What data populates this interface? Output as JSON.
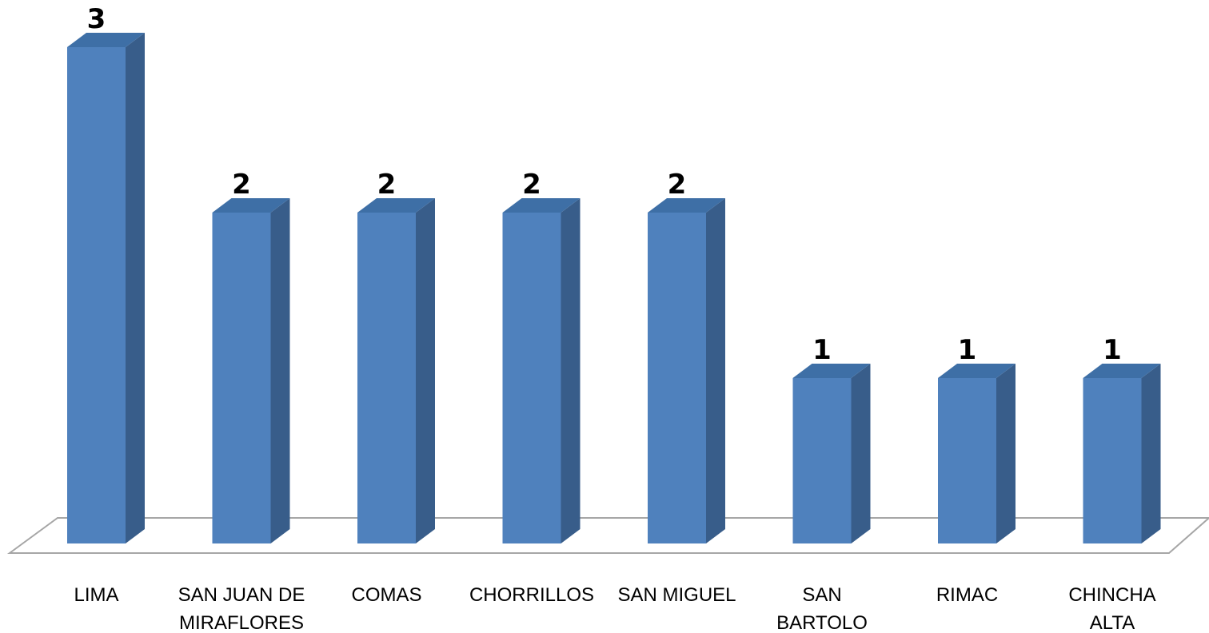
{
  "chart_data": {
    "type": "bar",
    "title": "",
    "xlabel": "",
    "ylabel": "",
    "categories": [
      [
        "LIMA"
      ],
      [
        "SAN JUAN DE",
        "MIRAFLORES"
      ],
      [
        "COMAS"
      ],
      [
        "CHORRILLOS"
      ],
      [
        "SAN MIGUEL"
      ],
      [
        "SAN",
        "BARTOLO"
      ],
      [
        "RIMAC"
      ],
      [
        "CHINCHA",
        "ALTA"
      ]
    ],
    "values": [
      3,
      2,
      2,
      2,
      2,
      1,
      1,
      1
    ],
    "data_labels": [
      "3",
      "2",
      "2",
      "2",
      "2",
      "1",
      "1",
      "1"
    ],
    "ylim": [
      0,
      3
    ],
    "grid": false,
    "legend": "none",
    "style": "3d-column",
    "colors": {
      "bar_front": "#4F81BD",
      "bar_side": "#385D8A",
      "bar_top": "#3E6FA6",
      "floor_line": "#A6A6A6",
      "label": "#000000"
    }
  }
}
